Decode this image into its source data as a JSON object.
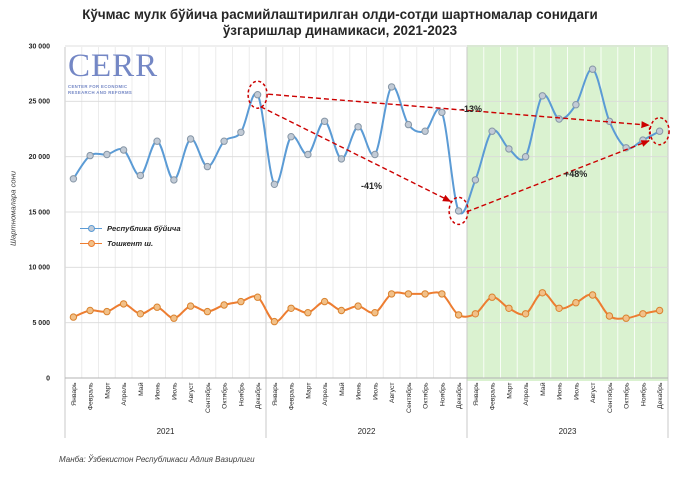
{
  "title": {
    "line1": "Кўчмас мулк бўйича расмийлаштирилган олди-сотди шартномалар сонидаги",
    "line2": "ўзгаришлар динамикаси, 2021-2023"
  },
  "logo": {
    "text": "CERR",
    "tagline1": "CENTER FOR ECONOMIC",
    "tagline2": "RESEARCH AND REFORMS"
  },
  "source": "Манба: Ўзбекистон Республикаси Адлия Вазирлиги",
  "colors": {
    "republic_line": "#5b9bd5",
    "tashkent_line": "#ed7d31",
    "annotation_red": "#cc0000",
    "highlight_green": "#daf2d0",
    "gridline": "#d9d9d9",
    "axis_line": "#b3b3b3",
    "logo_blue": "#7487c5"
  },
  "chart_data": {
    "type": "line",
    "title": "Кўчмас мулк бўйича расмийлаштирилган олди-сотди шартномалар сонидаги ўзгаришлар динамикаси, 2021-2023",
    "xlabel": "",
    "ylabel": "Шартномалара сони",
    "ylim": [
      0,
      30000
    ],
    "ytick_step": 5000,
    "ytick_labels": [
      "0",
      "5 000",
      "10 000",
      "15 000",
      "20 000",
      "25 000",
      "30 000"
    ],
    "grid": true,
    "legend_position": "middle-left",
    "months": [
      "Январь",
      "Февраль",
      "Март",
      "Апрель",
      "Май",
      "Июнь",
      "Июль",
      "Август",
      "Сентябрь",
      "Октябрь",
      "Ноябрь",
      "Декабрь"
    ],
    "years": [
      "2021",
      "2022",
      "2023"
    ],
    "highlighted_year": "2023",
    "series": [
      {
        "name": "Республика бўйича",
        "color": "#5b9bd5",
        "marker_fill": "#c2cbd6",
        "marker_stroke": "#8696a6",
        "values": [
          18000,
          20100,
          20200,
          20600,
          18300,
          21400,
          17900,
          21600,
          19100,
          21400,
          22200,
          25600,
          17500,
          21800,
          20200,
          23200,
          19800,
          22700,
          20200,
          26300,
          22900,
          22300,
          24000,
          15100,
          17900,
          22300,
          20700,
          20000,
          25500,
          23400,
          24700,
          27900,
          23200,
          20800,
          21500,
          22300
        ]
      },
      {
        "name": "Тошкент ш.",
        "color": "#ed7d31",
        "marker_fill": "#f2c088",
        "marker_stroke": "#d9832f",
        "values": [
          5500,
          6100,
          6000,
          6700,
          5800,
          6400,
          5400,
          6500,
          6000,
          6600,
          6900,
          7300,
          5100,
          6300,
          5900,
          6900,
          6100,
          6500,
          5900,
          7600,
          7600,
          7600,
          7600,
          5700,
          5800,
          7300,
          6300,
          5800,
          7700,
          6300,
          6800,
          7500,
          5600,
          5400,
          5800,
          6100
        ]
      }
    ],
    "circled_point_indices": [
      11,
      23,
      35
    ],
    "annotations": [
      {
        "label": "-13%",
        "from_index": 11,
        "to_index": 35
      },
      {
        "label": "-41%",
        "from_index": 11,
        "to_index": 23
      },
      {
        "label": "+48%",
        "from_index": 23,
        "to_index": 35
      }
    ]
  }
}
